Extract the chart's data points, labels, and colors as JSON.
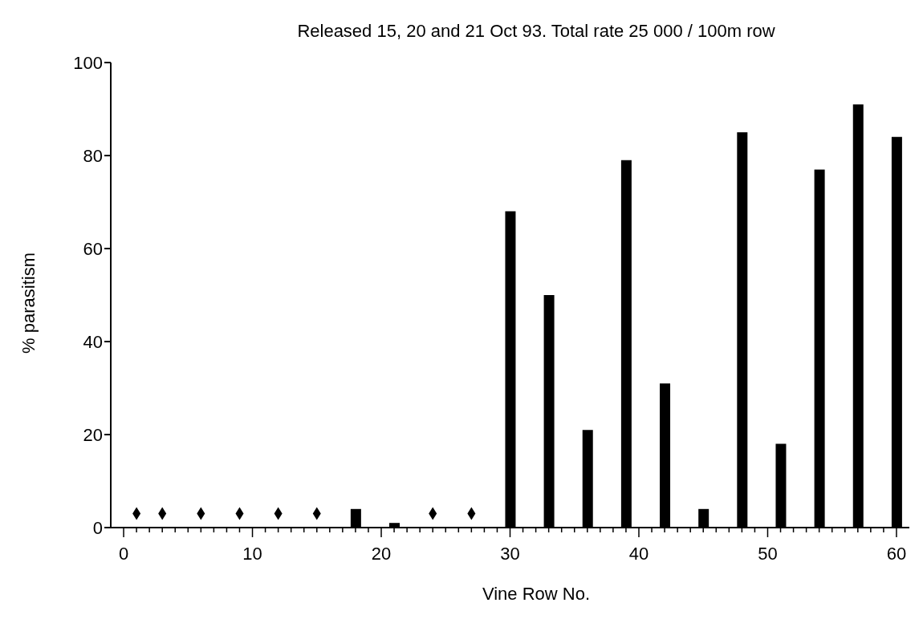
{
  "chart_data": {
    "type": "bar",
    "title": "Released 15, 20 and 21 Oct 93.  Total rate 25 000 / 100m row",
    "xlabel": "Vine Row No.",
    "ylabel": "% parasitism",
    "series": [
      {
        "color": "#000000",
        "x": [
          18,
          21,
          30,
          33,
          36,
          39,
          42,
          45,
          48,
          51,
          54,
          57,
          60
        ],
        "values": [
          4,
          1,
          68,
          50,
          21,
          79,
          31,
          4,
          85,
          18,
          77,
          91,
          84
        ]
      },
      {
        "type": "scatter",
        "color": "#000000",
        "x": [
          1,
          3,
          6,
          9,
          12,
          15,
          24,
          27
        ],
        "values": [
          3,
          3,
          3,
          3,
          3,
          3,
          3,
          3
        ]
      }
    ],
    "marker": "diamond",
    "xlim": [
      -1,
      61
    ],
    "ylim": [
      0,
      100
    ],
    "yticks": [
      0,
      20,
      40,
      60,
      80,
      100
    ],
    "xticks": [
      0,
      {
        "value": 1,
        "label": null
      },
      {
        "value": 2,
        "label": null
      },
      {
        "value": 3,
        "label": null
      },
      {
        "value": 4,
        "label": null
      },
      {
        "value": 5,
        "label": null
      },
      {
        "value": 6,
        "label": null
      },
      {
        "value": 7,
        "label": null
      },
      {
        "value": 8,
        "label": null
      },
      {
        "value": 9,
        "label": null
      },
      10,
      {
        "value": 11,
        "label": null
      },
      {
        "value": 12,
        "label": null
      },
      {
        "value": 13,
        "label": null
      },
      {
        "value": 14,
        "label": null
      },
      {
        "value": 15,
        "label": null
      },
      {
        "value": 16,
        "label": null
      },
      {
        "value": 17,
        "label": null
      },
      {
        "value": 18,
        "label": null
      },
      {
        "value": 19,
        "label": null
      },
      20,
      {
        "value": 21,
        "label": null
      },
      {
        "value": 22,
        "label": null
      },
      {
        "value": 23,
        "label": null
      },
      {
        "value": 24,
        "label": null
      },
      {
        "value": 25,
        "label": null
      },
      {
        "value": 26,
        "label": null
      },
      {
        "value": 27,
        "label": null
      },
      {
        "value": 28,
        "label": null
      },
      {
        "value": 29,
        "label": null
      },
      30,
      {
        "value": 31,
        "label": null
      },
      {
        "value": 32,
        "label": null
      },
      {
        "value": 33,
        "label": null
      },
      {
        "value": 34,
        "label": null
      },
      {
        "value": 35,
        "label": null
      },
      {
        "value": 36,
        "label": null
      },
      {
        "value": 37,
        "label": null
      },
      {
        "value": 38,
        "label": null
      },
      {
        "value": 39,
        "label": null
      },
      40,
      {
        "value": 41,
        "label": null
      },
      {
        "value": 42,
        "label": null
      },
      {
        "value": 43,
        "label": null
      },
      {
        "value": 44,
        "label": null
      },
      {
        "value": 45,
        "label": null
      },
      {
        "value": 46,
        "label": null
      },
      {
        "value": 47,
        "label": null
      },
      {
        "value": 48,
        "label": null
      },
      {
        "value": 49,
        "label": null
      },
      50,
      {
        "value": 51,
        "label": null
      },
      {
        "value": 52,
        "label": null
      },
      {
        "value": 53,
        "label": null
      },
      {
        "value": 54,
        "label": null
      },
      {
        "value": 55,
        "label": null
      },
      {
        "value": 56,
        "label": null
      },
      {
        "value": 57,
        "label": null
      },
      {
        "value": 58,
        "label": null
      },
      {
        "value": 59,
        "label": null
      },
      60
    ],
    "grid": false,
    "legend": false
  }
}
